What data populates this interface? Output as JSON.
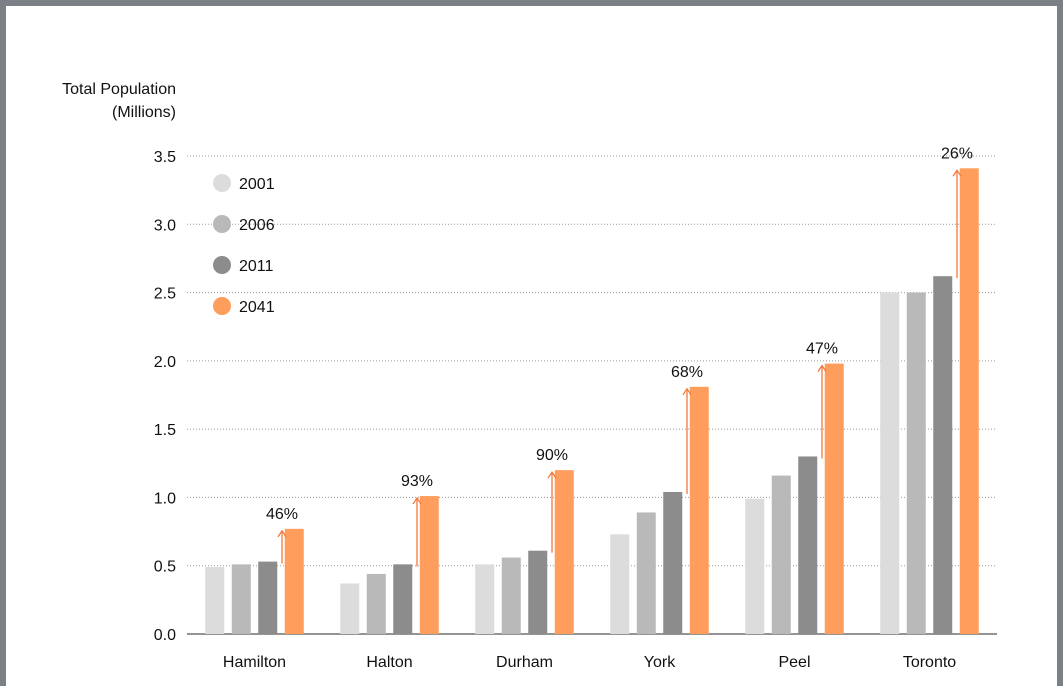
{
  "chart_data": {
    "type": "bar",
    "ylabel_lines": [
      "Total Population",
      "(Millions)"
    ],
    "ylim": [
      0,
      3.5
    ],
    "yticks": [
      "0.0",
      "0.5",
      "1.0",
      "1.5",
      "2.0",
      "2.5",
      "3.0",
      "3.5"
    ],
    "grid": "horizontal dotted",
    "legend_position": "top-left",
    "categories": [
      "Hamilton",
      "Halton",
      "Durham",
      "York",
      "Peel",
      "Toronto"
    ],
    "series": [
      {
        "name": "2001",
        "color": "#dcdcdc",
        "values": [
          0.49,
          0.37,
          0.51,
          0.73,
          0.99,
          2.5
        ]
      },
      {
        "name": "2006",
        "color": "#b9b9b9",
        "values": [
          0.51,
          0.44,
          0.56,
          0.89,
          1.16,
          2.5
        ]
      },
      {
        "name": "2011",
        "color": "#8c8c8c",
        "values": [
          0.53,
          0.51,
          0.61,
          1.04,
          1.3,
          2.62
        ]
      },
      {
        "name": "2041",
        "color": "#ff9d5c",
        "values": [
          0.77,
          1.01,
          1.2,
          1.81,
          1.98,
          3.41
        ]
      }
    ],
    "growth_labels": [
      "46%",
      "93%",
      "90%",
      "68%",
      "47%",
      "26%"
    ],
    "arrow_color": "#f47a3b"
  }
}
